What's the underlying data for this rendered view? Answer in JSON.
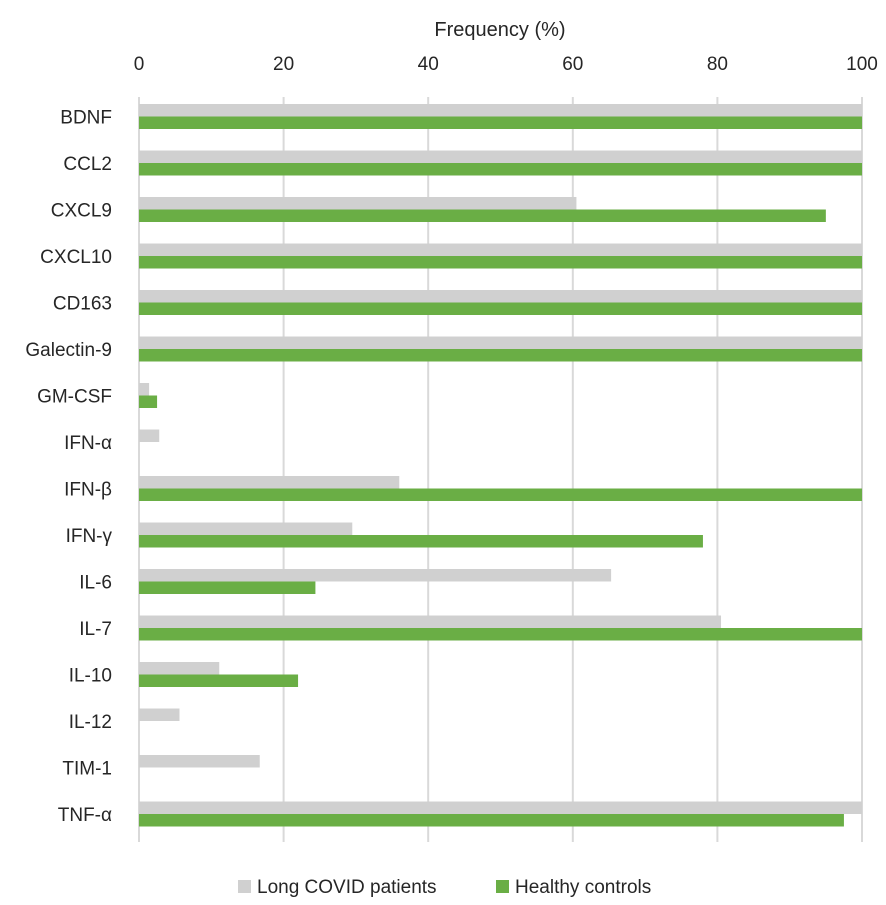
{
  "chart_data": {
    "type": "bar",
    "orientation": "horizontal",
    "title": "",
    "xlabel": "Frequency (%)",
    "ylabel": "",
    "xlim": [
      0,
      100
    ],
    "x_ticks": [
      "0",
      "20",
      "40",
      "60",
      "80",
      "100"
    ],
    "x_tick_values": [
      0,
      20,
      40,
      60,
      80,
      100
    ],
    "x_axis_position": "top",
    "grid": true,
    "legend_position": "bottom",
    "categories": [
      "BDNF",
      "CCL2",
      "CXCL9",
      "CXCL10",
      "CD163",
      "Galectin-9",
      "GM-CSF",
      "IFN-α",
      "IFN-β",
      "IFN-γ",
      "IL-6",
      "IL-7",
      "IL-10",
      "IL-12",
      "TIM-1",
      "TNF-α"
    ],
    "series": [
      {
        "name": "Long COVID patients",
        "color": "#d0d0d0",
        "values": [
          100,
          100,
          60.5,
          100,
          100,
          100,
          1.4,
          2.8,
          36,
          29.5,
          65.3,
          80.5,
          11.1,
          5.6,
          16.7,
          100
        ]
      },
      {
        "name": "Healthy controls",
        "color": "#6aae45",
        "values": [
          100,
          100,
          95,
          100,
          100,
          100,
          2.5,
          0,
          100,
          78,
          24.4,
          100,
          22,
          0,
          0,
          97.5
        ]
      }
    ]
  },
  "colors": {
    "gridline": "#d9d9d9",
    "text": "#262626"
  }
}
